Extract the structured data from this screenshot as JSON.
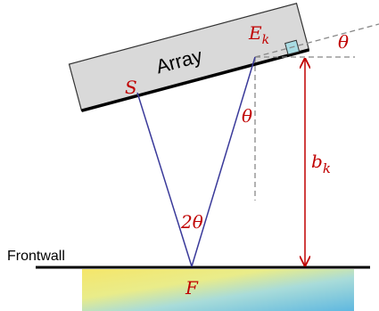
{
  "array_label": "Array",
  "source_label": "S",
  "element_label": {
    "base": "E",
    "sub": "k"
  },
  "tilt_angle_label": "θ",
  "ray_angle_label": "θ",
  "apex_angle_label": "2θ",
  "height_label": {
    "base": "b",
    "sub": "k"
  },
  "surface_label": "Frontwall",
  "focus_label": "F"
}
